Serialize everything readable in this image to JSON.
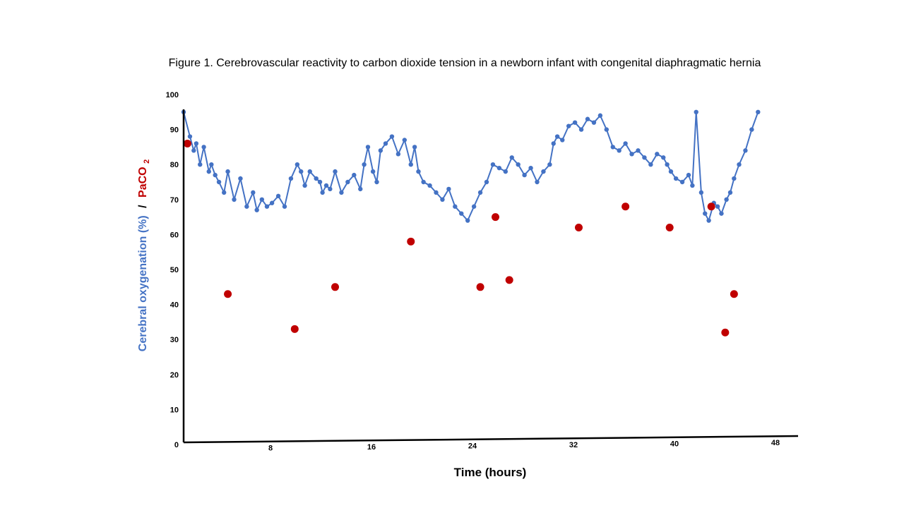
{
  "chart_data": {
    "type": "scatter",
    "title": "Figure 1. Cerebrovascular reactivity to carbon dioxide tension in a newborn infant with congenital diaphragmatic hernia",
    "xlabel": "Time (hours)",
    "ylabel": {
      "part1": "Cerebral oxygenation (%)",
      "sep": "/",
      "part2_main": "PaCO",
      "part2_sub": "2"
    },
    "xlim": [
      0,
      48
    ],
    "ylim": [
      0,
      100
    ],
    "x_ticks": [
      "8",
      "16",
      "24",
      "32",
      "40",
      "48"
    ],
    "y_ticks": [
      "0",
      "10",
      "20",
      "30",
      "40",
      "50",
      "60",
      "70",
      "80",
      "90",
      "100"
    ],
    "grid": false,
    "colors": {
      "oxygenation": "#4472C4",
      "paco2": "#C00000"
    },
    "series": [
      {
        "name": "Cerebral oxygenation (%)",
        "marker": "line-with-dots",
        "x": [
          0.0,
          0.5,
          0.8,
          1.0,
          1.3,
          1.6,
          2.0,
          2.2,
          2.5,
          2.8,
          3.2,
          3.5,
          4.0,
          4.5,
          5.0,
          5.5,
          5.8,
          6.2,
          6.6,
          7.0,
          7.5,
          8.0,
          8.5,
          9.0,
          9.3,
          9.6,
          10.0,
          10.5,
          10.8,
          11.0,
          11.3,
          11.6,
          12.0,
          12.5,
          13.0,
          13.5,
          14.0,
          14.3,
          14.6,
          15.0,
          15.3,
          15.6,
          16.0,
          16.5,
          17.0,
          17.5,
          18.0,
          18.3,
          18.6,
          19.0,
          19.5,
          20.0,
          20.5,
          21.0,
          21.5,
          22.0,
          22.5,
          23.0,
          23.5,
          24.0,
          24.5,
          25.0,
          25.5,
          26.0,
          26.5,
          27.0,
          27.5,
          28.0,
          28.5,
          29.0,
          29.3,
          29.6,
          30.0,
          30.5,
          31.0,
          31.5,
          32.0,
          32.5,
          33.0,
          33.5,
          34.0,
          34.5,
          35.0,
          35.5,
          36.0,
          36.5,
          37.0,
          37.5,
          38.0,
          38.3,
          38.6,
          39.0,
          39.5,
          40.0,
          40.3,
          40.6,
          41.0,
          41.3,
          41.6,
          42.0,
          42.3,
          42.6,
          43.0,
          43.3,
          43.6,
          44.0,
          44.5,
          45.0,
          45.5
        ],
        "y": [
          95,
          88,
          84,
          86,
          80,
          85,
          78,
          80,
          77,
          75,
          72,
          78,
          70,
          76,
          68,
          72,
          67,
          70,
          68,
          69,
          71,
          68,
          76,
          80,
          78,
          74,
          78,
          76,
          75,
          72,
          74,
          73,
          78,
          72,
          75,
          77,
          73,
          80,
          85,
          78,
          75,
          84,
          86,
          88,
          83,
          87,
          80,
          85,
          78,
          75,
          74,
          72,
          70,
          73,
          68,
          66,
          64,
          68,
          72,
          75,
          80,
          79,
          78,
          82,
          80,
          77,
          79,
          75,
          78,
          80,
          86,
          88,
          87,
          91,
          92,
          90,
          93,
          92,
          94,
          90,
          85,
          84,
          86,
          83,
          84,
          82,
          80,
          83,
          82,
          80,
          78,
          76,
          75,
          77,
          74,
          95,
          72,
          66,
          64,
          69,
          68,
          66,
          70,
          72,
          76,
          80,
          84,
          90,
          95
        ]
      },
      {
        "name": "PaCO2",
        "marker": "dot",
        "x": [
          0.3,
          3.5,
          8.8,
          12.0,
          18.0,
          23.5,
          24.7,
          25.8,
          31.3,
          35.0,
          38.5,
          41.8,
          42.9,
          43.6
        ],
        "y": [
          86,
          43,
          33,
          45,
          58,
          45,
          65,
          47,
          62,
          68,
          62,
          68,
          32,
          43
        ]
      }
    ]
  }
}
